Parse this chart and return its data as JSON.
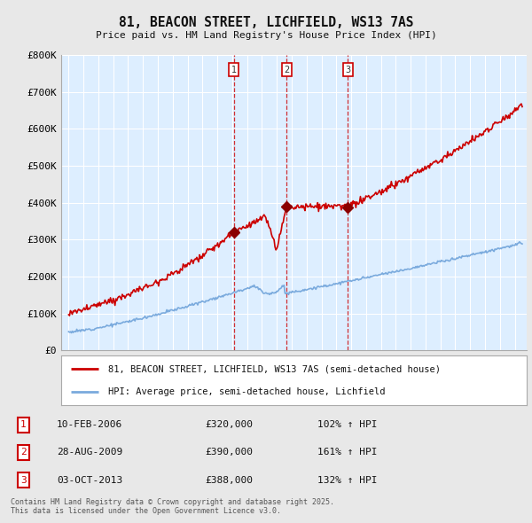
{
  "title": "81, BEACON STREET, LICHFIELD, WS13 7AS",
  "subtitle": "Price paid vs. HM Land Registry's House Price Index (HPI)",
  "ylim": [
    0,
    800000
  ],
  "yticks": [
    0,
    100000,
    200000,
    300000,
    400000,
    500000,
    600000,
    700000,
    800000
  ],
  "ytick_labels": [
    "£0",
    "£100K",
    "£200K",
    "£300K",
    "£400K",
    "£500K",
    "£600K",
    "£700K",
    "£800K"
  ],
  "x_start_year": 1995,
  "x_end_year": 2025,
  "background_color": "#e8e8e8",
  "plot_bg_color": "#ddeeff",
  "grid_color": "#ffffff",
  "red_line_color": "#cc0000",
  "blue_line_color": "#7aaadd",
  "sale_year_nums": [
    2006.11,
    2009.65,
    2013.77
  ],
  "sale_prices": [
    320000,
    390000,
    388000
  ],
  "sale_labels": [
    "1",
    "2",
    "3"
  ],
  "sale_hpi_pct": [
    "102% ↑ HPI",
    "161% ↑ HPI",
    "132% ↑ HPI"
  ],
  "sale_date_labels": [
    "10-FEB-2006",
    "28-AUG-2009",
    "03-OCT-2013"
  ],
  "sale_price_labels": [
    "£320,000",
    "£390,000",
    "£388,000"
  ],
  "legend_line1": "81, BEACON STREET, LICHFIELD, WS13 7AS (semi-detached house)",
  "legend_line2": "HPI: Average price, semi-detached house, Lichfield",
  "footer": "Contains HM Land Registry data © Crown copyright and database right 2025.\nThis data is licensed under the Open Government Licence v3.0."
}
